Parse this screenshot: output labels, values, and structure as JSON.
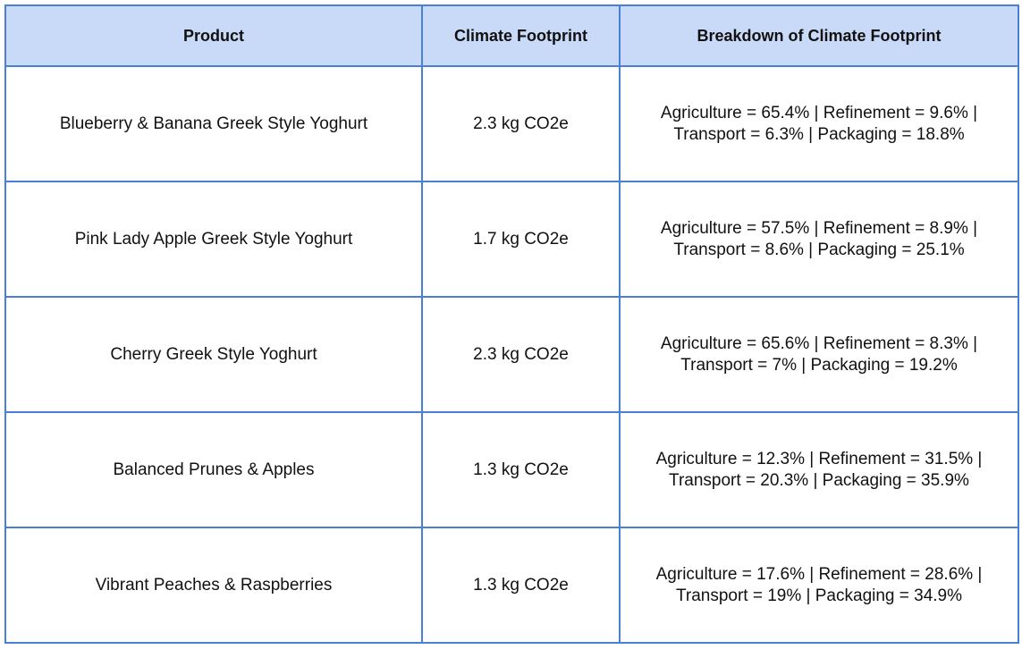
{
  "table": {
    "header": [
      "Product",
      "Climate Footprint",
      "Breakdown of Climate Footprint"
    ],
    "rows": [
      [
        "Blueberry & Banana Greek Style Yoghurt",
        "2.3 kg CO2e",
        "Agriculture = 65.4% | Refinement = 9.6% | Transport = 6.3% | Packaging = 18.8%"
      ],
      [
        "Pink Lady Apple Greek Style Yoghurt",
        "1.7 kg CO2e",
        "Agriculture = 57.5% | Refinement = 8.9% | Transport = 8.6% | Packaging = 25.1%"
      ],
      [
        "Cherry Greek Style Yoghurt",
        "2.3 kg CO2e",
        "Agriculture = 65.6% | Refinement = 8.3% | Transport = 7% | Packaging = 19.2%"
      ],
      [
        "Balanced Prunes & Apples",
        "1.3 kg CO2e",
        "Agriculture = 12.3% | Refinement = 31.5% | Transport = 20.3% | Packaging = 35.9%"
      ],
      [
        "Vibrant Peaches & Raspberries",
        "1.3 kg CO2e",
        "Agriculture = 17.6% | Refinement = 28.6% | Transport = 19% | Packaging = 34.9%"
      ]
    ]
  }
}
